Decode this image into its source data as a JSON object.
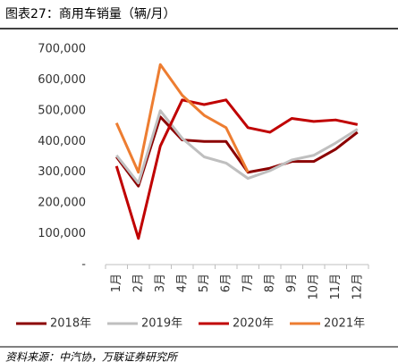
{
  "chart_data": {
    "type": "line",
    "title": "图表27：商用车销量（辆/月）",
    "source": "资料来源：中汽协，万联证券研究所",
    "categories": [
      "1月",
      "2月",
      "3月",
      "4月",
      "5月",
      "6月",
      "7月",
      "8月",
      "9月",
      "10月",
      "11月",
      "12月"
    ],
    "series": [
      {
        "name": "2018年",
        "color": "#8b0000",
        "values": [
          350000,
          255000,
          480000,
          405000,
          400000,
          400000,
          300000,
          313000,
          335000,
          335000,
          375000,
          430000
        ]
      },
      {
        "name": "2019年",
        "color": "#bfbfbf",
        "values": [
          355000,
          265000,
          500000,
          410000,
          350000,
          330000,
          280000,
          305000,
          340000,
          355000,
          395000,
          440000
        ]
      },
      {
        "name": "2020年",
        "color": "#c00000",
        "values": [
          320000,
          85000,
          385000,
          535000,
          520000,
          535000,
          445000,
          430000,
          475000,
          465000,
          470000,
          455000
        ]
      },
      {
        "name": "2021年",
        "color": "#ed7d31",
        "values": [
          460000,
          300000,
          650000,
          550000,
          485000,
          445000,
          300000,
          null,
          null,
          null,
          null,
          null
        ]
      }
    ],
    "ylim": [
      0,
      700000
    ],
    "yticks": [
      {
        "value": 0,
        "label": "-"
      },
      {
        "value": 100000,
        "label": "100,000"
      },
      {
        "value": 200000,
        "label": "200,000"
      },
      {
        "value": 300000,
        "label": "300,000"
      },
      {
        "value": 400000,
        "label": "400,000"
      },
      {
        "value": 500000,
        "label": "500,000"
      },
      {
        "value": 600000,
        "label": "600,000"
      },
      {
        "value": 700000,
        "label": "700,000"
      }
    ],
    "legend": "bottom"
  }
}
